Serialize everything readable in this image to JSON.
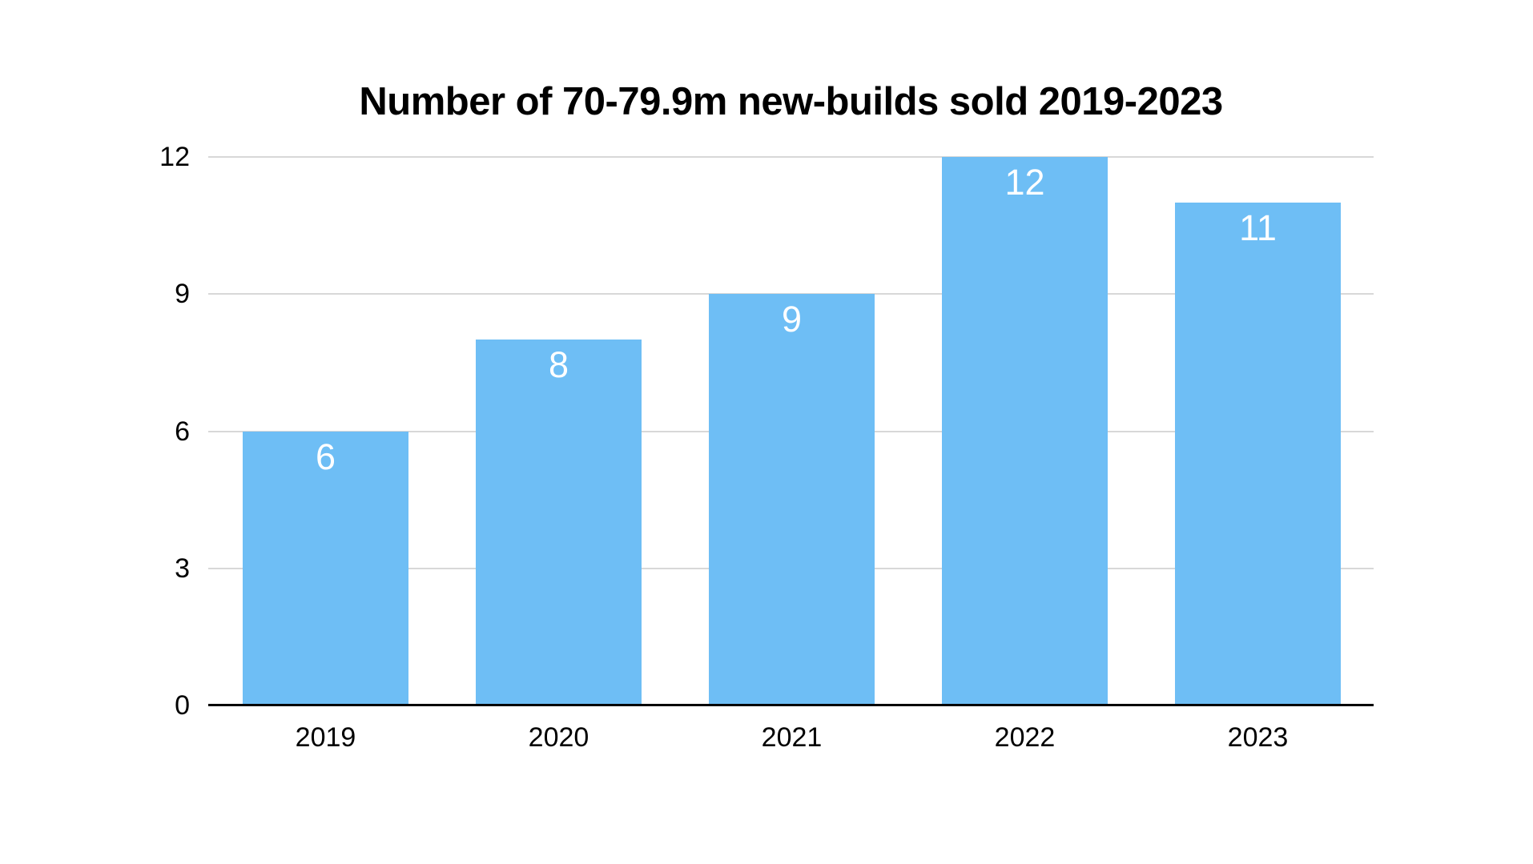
{
  "chart_data": {
    "type": "bar",
    "title": "Number of 70-79.9m new-builds sold 2019-2023",
    "categories": [
      "2019",
      "2020",
      "2021",
      "2022",
      "2023"
    ],
    "values": [
      6,
      8,
      9,
      12,
      11
    ],
    "bar_labels": [
      "6",
      "8",
      "9",
      "12",
      "11"
    ],
    "xlabel": "",
    "ylabel": "",
    "ylim": [
      0,
      12
    ],
    "yticks": [
      0,
      3,
      6,
      9,
      12
    ],
    "grid": true,
    "legend_position": "none",
    "colors": {
      "bar": "#6ebef5",
      "bar_label": "#ffffff",
      "grid": "#d8d8d8",
      "axis": "#000000",
      "text": "#000000",
      "background": "#ffffff"
    }
  }
}
